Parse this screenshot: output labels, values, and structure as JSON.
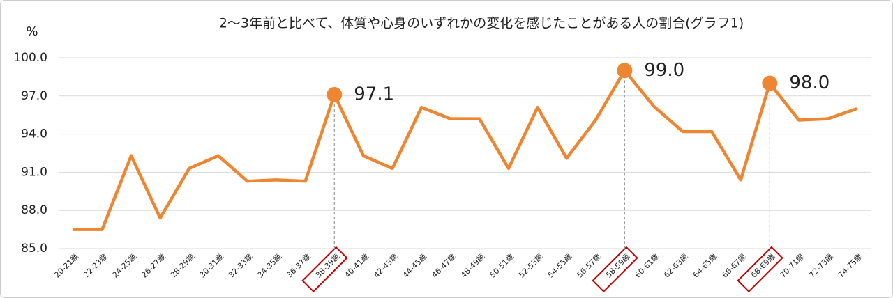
{
  "chart_data": {
    "type": "line",
    "title": "2～3年前と比べて、体質や心身のいずれかの変化を感じたことがある人の割合(グラフ1)",
    "y_label": "%",
    "categories": [
      "20-21歳",
      "22-23歳",
      "24-25歳",
      "26-27歳",
      "28-29歳",
      "30-31歳",
      "32-33歳",
      "34-35歳",
      "36-37歳",
      "38-39歳",
      "40-41歳",
      "42-43歳",
      "44-45歳",
      "46-47歳",
      "48-49歳",
      "50-51歳",
      "52-53歳",
      "54-55歳",
      "56-57歳",
      "58-59歳",
      "60-61歳",
      "62-63歳",
      "64-65歳",
      "66-67歳",
      "68-69歳",
      "70-71歳",
      "72-73歳",
      "74-75歳"
    ],
    "series": [
      {
        "name": "割合",
        "color": "#ed8531",
        "values": [
          86.5,
          86.5,
          92.3,
          87.4,
          91.3,
          92.3,
          90.3,
          90.4,
          90.3,
          97.1,
          92.3,
          91.3,
          96.1,
          95.2,
          95.2,
          91.3,
          96.1,
          92.1,
          95.1,
          99.0,
          96.2,
          94.2,
          94.2,
          90.4,
          98.0,
          95.1,
          95.2,
          96.0
        ],
        "value_labels": [
          null,
          null,
          null,
          null,
          null,
          null,
          null,
          null,
          null,
          "97.1",
          null,
          null,
          null,
          null,
          null,
          null,
          null,
          null,
          null,
          "99.0",
          null,
          null,
          null,
          null,
          "98.0",
          null,
          null,
          null
        ]
      }
    ],
    "ylim": [
      85,
      100
    ],
    "yticks": [
      {
        "value": 85,
        "label": "85.0"
      },
      {
        "value": 88,
        "label": "88.0"
      },
      {
        "value": 91,
        "label": "91.0"
      },
      {
        "value": 94,
        "label": "94.0"
      },
      {
        "value": 97,
        "label": "97.0"
      },
      {
        "value": 100,
        "label": "100.0"
      }
    ],
    "grid": true,
    "highlight_color": "#c00000"
  }
}
